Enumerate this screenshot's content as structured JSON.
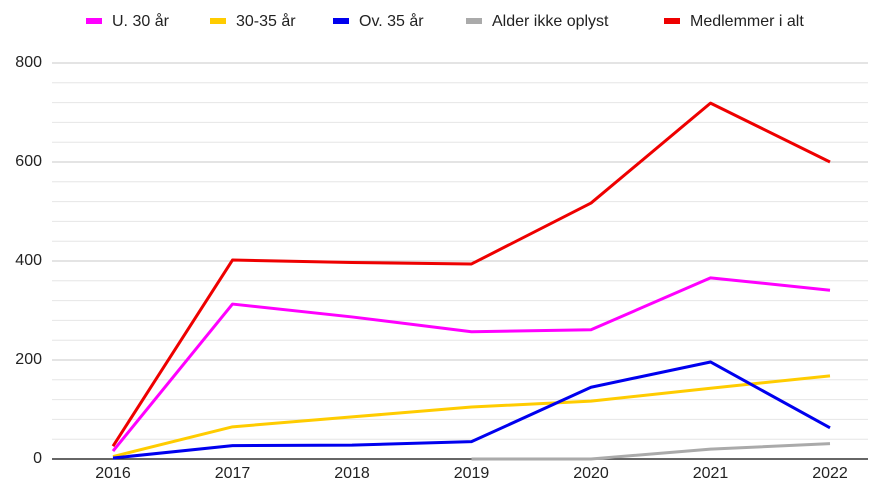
{
  "chart_data": {
    "type": "line",
    "categories": [
      "2016",
      "2017",
      "2018",
      "2019",
      "2020",
      "2021",
      "2022"
    ],
    "series": [
      {
        "name": "U. 30 år",
        "color": "#ff00ff",
        "values": [
          16,
          313,
          287,
          257,
          261,
          366,
          341
        ]
      },
      {
        "name": "30-35 år",
        "color": "#ffcc00",
        "values": [
          5,
          65,
          85,
          105,
          117,
          143,
          168
        ]
      },
      {
        "name": "Ov. 35 år",
        "color": "#0000ee",
        "values": [
          2,
          27,
          28,
          35,
          145,
          196,
          63
        ]
      },
      {
        "name": "Alder ikke oplyst",
        "color": "#aaaaaa",
        "values": [
          null,
          null,
          null,
          0,
          0,
          20,
          31
        ]
      },
      {
        "name": "Medlemmer i alt",
        "color": "#ee0000",
        "values": [
          26,
          402,
          397,
          394,
          517,
          719,
          600
        ]
      }
    ],
    "ylim": [
      0,
      800
    ],
    "yticks": [
      0,
      200,
      400,
      600,
      800
    ],
    "minor_yticks": [
      40,
      80,
      120,
      160,
      240,
      280,
      320,
      360,
      440,
      480,
      520,
      560,
      640,
      680,
      720,
      760
    ],
    "grid": true,
    "legend": "top"
  }
}
